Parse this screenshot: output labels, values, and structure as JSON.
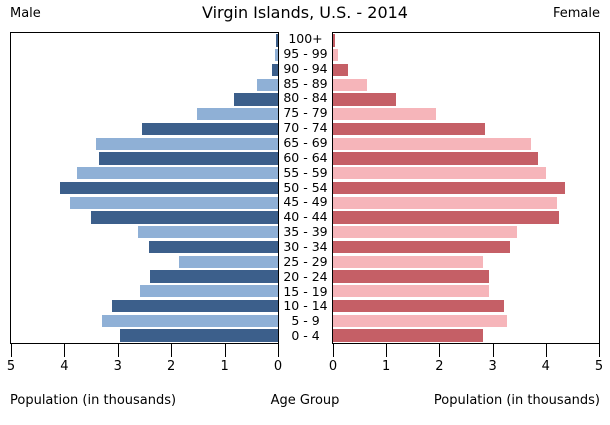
{
  "header": {
    "male_label": "Male",
    "title": "Virgin Islands, U.S. - 2014",
    "female_label": "Female"
  },
  "footer": {
    "left_caption": "Population (in thousands)",
    "center_caption": "Age Group",
    "right_caption": "Population (in thousands)"
  },
  "colors": {
    "male_dark": "#3c5f8b",
    "male_light": "#8fb0d6",
    "female_dark": "#c55f66",
    "female_light": "#f6b5ba",
    "axis": "#000000"
  },
  "chart_data": {
    "type": "bar",
    "subtype": "population-pyramid",
    "title": "Virgin Islands, U.S. - 2014",
    "xlabel_left": "Population (in thousands)",
    "xlabel_center": "Age Group",
    "xlabel_right": "Population (in thousands)",
    "unit": "thousands",
    "axis_max": 5,
    "x_ticks_male": [
      5,
      4,
      3,
      2,
      1,
      0
    ],
    "x_ticks_female": [
      0,
      1,
      2,
      3,
      4,
      5
    ],
    "grid": false,
    "categories_top_to_bottom": [
      "100+",
      "95 - 99",
      "90 - 94",
      "85 - 89",
      "80 - 84",
      "75 - 79",
      "70 - 74",
      "65 - 69",
      "60 - 64",
      "55 - 59",
      "50 - 54",
      "45 - 49",
      "40 - 44",
      "35 - 39",
      "30 - 34",
      "25 - 29",
      "20 - 24",
      "15 - 19",
      "10 - 14",
      "5 - 9",
      "0 - 4"
    ],
    "series": [
      {
        "name": "Male",
        "values_top_to_bottom": [
          0.04,
          0.06,
          0.12,
          0.4,
          0.83,
          1.52,
          2.54,
          3.4,
          3.35,
          3.77,
          4.08,
          3.9,
          3.5,
          2.63,
          2.42,
          1.85,
          2.39,
          2.59,
          3.11,
          3.3,
          2.96
        ]
      },
      {
        "name": "Female",
        "values_top_to_bottom": [
          0.04,
          0.09,
          0.29,
          0.64,
          1.19,
          1.94,
          2.86,
          3.72,
          3.85,
          4.01,
          4.37,
          4.21,
          4.24,
          3.46,
          3.32,
          2.82,
          2.93,
          2.94,
          3.22,
          3.27,
          2.82
        ]
      }
    ]
  }
}
